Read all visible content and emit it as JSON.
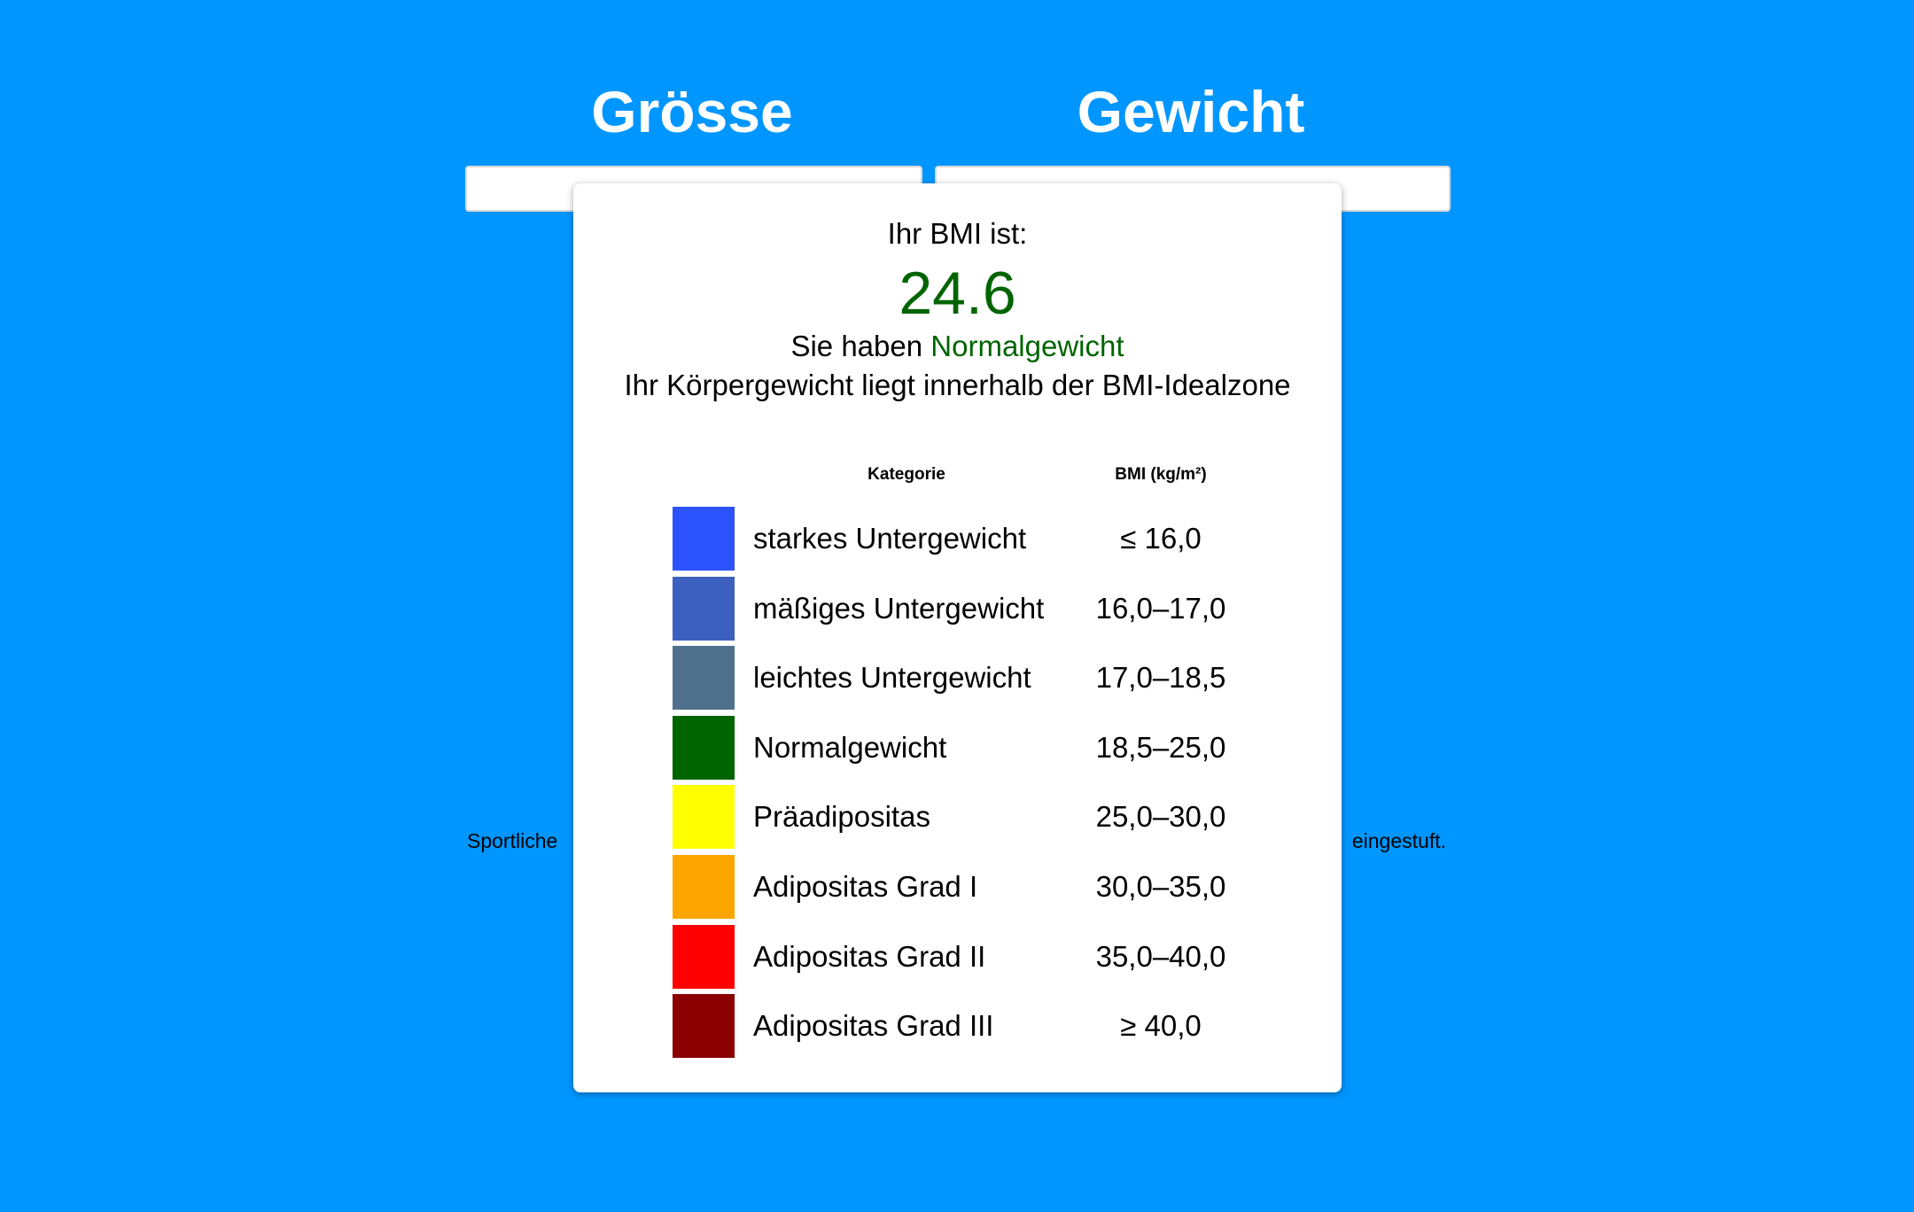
{
  "form": {
    "height_label": "Grösse",
    "weight_label": "Gewicht",
    "note_start": "Sportliche",
    "note_end": "eingestuft."
  },
  "result": {
    "intro": "Ihr BMI ist:",
    "bmi": "24.6",
    "verdict_prefix": "Sie haben",
    "verdict": "Normalgewicht",
    "message": "Ihr Körpergewicht liegt innerhalb der BMI-Idealzone",
    "table": {
      "headers": [
        "Kategorie",
        "BMI (kg/m²)"
      ],
      "rows": [
        {
          "color": "#2c52fb",
          "category": "starkes Untergewicht",
          "range": "≤ 16,0"
        },
        {
          "color": "#3c60c0",
          "category": "mäßiges Untergewicht",
          "range": "16,0–17,0"
        },
        {
          "color": "#4e708c",
          "category": "leichtes Untergewicht",
          "range": "17,0–18,5"
        },
        {
          "color": "#006400",
          "category": "Normalgewicht",
          "range": "18,5–25,0"
        },
        {
          "color": "#ffff00",
          "category": "Präadipositas",
          "range": "25,0–30,0"
        },
        {
          "color": "#ffa500",
          "category": "Adipositas Grad I",
          "range": "30,0–35,0"
        },
        {
          "color": "#ff0000",
          "category": "Adipositas Grad II",
          "range": "35,0–40,0"
        },
        {
          "color": "#8b0000",
          "category": "Adipositas Grad III",
          "range": "≥ 40,0"
        }
      ]
    }
  }
}
